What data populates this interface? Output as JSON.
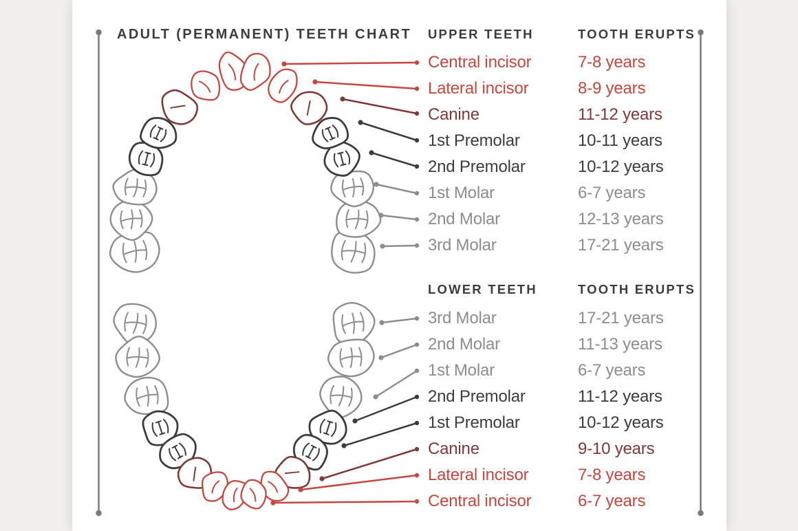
{
  "page": {
    "title": "ADULT (PERMANENT) TEETH CHART"
  },
  "colors": {
    "incisor": "#c4483f",
    "canine": "#7d3a37",
    "premolar": "#3c3b3f",
    "molar": "#8d8c91",
    "heading_text": "#3d3c40",
    "frame_line": "#7a787c",
    "card_bg": "#ffffff",
    "page_bg": "#f0efed"
  },
  "upper": {
    "heading": "UPPER TEETH",
    "erupts_heading": "TOOTH ERUPTS",
    "rows": [
      {
        "tooth": "Central incisor",
        "erupts": "7-8 years",
        "group": "incisor"
      },
      {
        "tooth": "Lateral incisor",
        "erupts": "8-9 years",
        "group": "incisor"
      },
      {
        "tooth": "Canine",
        "erupts": "11-12 years",
        "group": "canine"
      },
      {
        "tooth": "1st Premolar",
        "erupts": "10-11 years",
        "group": "premolar"
      },
      {
        "tooth": "2nd Premolar",
        "erupts": "10-12 years",
        "group": "premolar"
      },
      {
        "tooth": "1st Molar",
        "erupts": "6-7 years",
        "group": "molar"
      },
      {
        "tooth": "2nd Molar",
        "erupts": "12-13 years",
        "group": "molar"
      },
      {
        "tooth": "3rd Molar",
        "erupts": "17-21 years",
        "group": "molar"
      }
    ]
  },
  "lower": {
    "heading": "LOWER TEETH",
    "erupts_heading": "TOOTH ERUPTS",
    "rows": [
      {
        "tooth": "3rd Molar",
        "erupts": "17-21 years",
        "group": "molar"
      },
      {
        "tooth": "2nd Molar",
        "erupts": "11-13 years",
        "group": "molar"
      },
      {
        "tooth": "1st Molar",
        "erupts": "6-7 years",
        "group": "molar"
      },
      {
        "tooth": "2nd Premolar",
        "erupts": "11-12 years",
        "group": "premolar"
      },
      {
        "tooth": "1st Premolar",
        "erupts": "10-12 years",
        "group": "premolar"
      },
      {
        "tooth": "Canine",
        "erupts": "9-10 years",
        "group": "canine"
      },
      {
        "tooth": "Lateral incisor",
        "erupts": "7-8 years",
        "group": "incisor"
      },
      {
        "tooth": "Central incisor",
        "erupts": "6-7 years",
        "group": "incisor"
      }
    ]
  },
  "diagram": {
    "upper_arch": "upper teeth arch",
    "lower_arch": "lower teeth arch",
    "tooth_groups_half_arch": [
      "molar",
      "molar",
      "molar",
      "premolar",
      "premolar",
      "canine",
      "incisor",
      "incisor"
    ]
  }
}
